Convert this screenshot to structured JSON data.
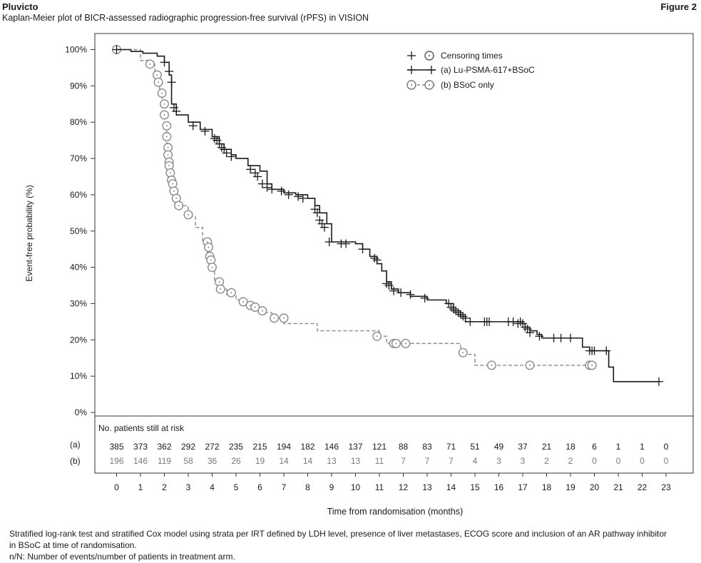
{
  "header": {
    "product": "Pluvicto",
    "figure_label": "Figure 2",
    "subtitle": "Kaplan-Meier plot of BICR-assessed radiographic progression-free survival (rPFS)  in VISION"
  },
  "footnotes": [
    "Stratified log-rank test and stratified Cox model using strata per IRT defined by LDH level, presence of liver metastases, ECOG score and inclusion of an AR pathway inhibitor",
    "in BSoC at time of randomisation.",
    "n/N: Number of events/number of patients in treatment arm."
  ],
  "chart_data": {
    "type": "line",
    "subtype": "kaplan-meier",
    "xlabel": "Time from randomisation (months)",
    "ylabel": "Event-free probability (%)",
    "xlim": [
      0,
      23
    ],
    "ylim": [
      0,
      100
    ],
    "x_ticks": [
      0,
      1,
      2,
      3,
      4,
      5,
      6,
      7,
      8,
      9,
      10,
      11,
      12,
      13,
      14,
      15,
      16,
      17,
      18,
      19,
      20,
      21,
      22,
      23
    ],
    "y_ticks": [
      0,
      10,
      20,
      30,
      40,
      50,
      60,
      70,
      80,
      90,
      100
    ],
    "y_tick_labels": [
      "0%",
      "10%",
      "20%",
      "30%",
      "40%",
      "50%",
      "60%",
      "70%",
      "80%",
      "90%",
      "100%"
    ],
    "grid": false,
    "legend_position": "top-right",
    "legend": [
      {
        "label": "Censoring times",
        "marker": "plus-and-circle"
      },
      {
        "label": "(a) Lu-PSMA-617+BSoC",
        "series": 0
      },
      {
        "label": "(b) BSoC only",
        "series": 1
      }
    ],
    "series": [
      {
        "name": "(a) Lu-PSMA-617+BSoC",
        "color": "#1a1a1a",
        "dash": "solid",
        "marker": "plus",
        "steps": [
          [
            0,
            100
          ],
          [
            0.6,
            99.5
          ],
          [
            1.1,
            99
          ],
          [
            1.7,
            98.2
          ],
          [
            2.0,
            96.5
          ],
          [
            2.2,
            93
          ],
          [
            2.3,
            85
          ],
          [
            2.5,
            82
          ],
          [
            3,
            80
          ],
          [
            3.5,
            78
          ],
          [
            4,
            76
          ],
          [
            4.3,
            74
          ],
          [
            4.5,
            72.5
          ],
          [
            4.8,
            71
          ],
          [
            5,
            70
          ],
          [
            5.5,
            68
          ],
          [
            6,
            66.5
          ],
          [
            6.3,
            63
          ],
          [
            6.5,
            61.5
          ],
          [
            7,
            60.5
          ],
          [
            7.5,
            60
          ],
          [
            8,
            59
          ],
          [
            8.3,
            57
          ],
          [
            8.5,
            55
          ],
          [
            8.8,
            52
          ],
          [
            9,
            47
          ],
          [
            10,
            46.5
          ],
          [
            10.3,
            45
          ],
          [
            10.6,
            43
          ],
          [
            10.9,
            41
          ],
          [
            11.1,
            39
          ],
          [
            11.3,
            36
          ],
          [
            11.5,
            34
          ],
          [
            11.8,
            33
          ],
          [
            12.3,
            32
          ],
          [
            13,
            31
          ],
          [
            13.8,
            30
          ],
          [
            14.1,
            28
          ],
          [
            14.4,
            26.5
          ],
          [
            14.6,
            25
          ],
          [
            16,
            25
          ],
          [
            17,
            24.5
          ],
          [
            17.1,
            23.5
          ],
          [
            17.3,
            22.5
          ],
          [
            17.6,
            21.5
          ],
          [
            17.8,
            20.5
          ],
          [
            19.2,
            20.5
          ],
          [
            19.5,
            18
          ],
          [
            19.8,
            17
          ],
          [
            20.6,
            12.5
          ],
          [
            20.8,
            8.5
          ],
          [
            22.7,
            8.5
          ]
        ],
        "censored": [
          [
            0,
            100
          ],
          [
            2.0,
            96.5
          ],
          [
            2.2,
            94
          ],
          [
            2.3,
            91
          ],
          [
            2.4,
            84
          ],
          [
            2.5,
            83
          ],
          [
            3.2,
            79
          ],
          [
            3.7,
            77.5
          ],
          [
            4.1,
            75.5
          ],
          [
            4.2,
            75
          ],
          [
            4.3,
            74
          ],
          [
            4.4,
            73
          ],
          [
            4.5,
            72.5
          ],
          [
            4.6,
            71.5
          ],
          [
            4.8,
            70.5
          ],
          [
            5.6,
            67
          ],
          [
            5.8,
            66
          ],
          [
            5.9,
            65
          ],
          [
            6.1,
            63
          ],
          [
            6.3,
            62
          ],
          [
            6.5,
            61.5
          ],
          [
            6.9,
            61
          ],
          [
            7.2,
            60
          ],
          [
            7.6,
            59.5
          ],
          [
            7.8,
            59
          ],
          [
            8.3,
            56
          ],
          [
            8.4,
            55
          ],
          [
            8.5,
            53
          ],
          [
            8.6,
            52
          ],
          [
            8.7,
            51
          ],
          [
            8.9,
            47
          ],
          [
            9.4,
            46.5
          ],
          [
            9.6,
            46.5
          ],
          [
            10.3,
            45
          ],
          [
            10.8,
            42.5
          ],
          [
            10.9,
            42
          ],
          [
            11.3,
            35.5
          ],
          [
            11.4,
            35
          ],
          [
            11.6,
            33.5
          ],
          [
            11.9,
            33
          ],
          [
            12.3,
            32.5
          ],
          [
            12.9,
            31.5
          ],
          [
            13.9,
            30
          ],
          [
            14.0,
            29
          ],
          [
            14.1,
            28.5
          ],
          [
            14.2,
            28
          ],
          [
            14.3,
            27.5
          ],
          [
            14.4,
            27
          ],
          [
            14.5,
            26.5
          ],
          [
            14.6,
            26
          ],
          [
            14.8,
            25
          ],
          [
            15.4,
            25
          ],
          [
            15.5,
            25
          ],
          [
            15.6,
            25
          ],
          [
            16.4,
            25
          ],
          [
            16.6,
            25
          ],
          [
            16.8,
            24.5
          ],
          [
            16.9,
            25
          ],
          [
            17.0,
            24.5
          ],
          [
            17.1,
            23.5
          ],
          [
            17.2,
            23
          ],
          [
            17.3,
            22
          ],
          [
            17.7,
            21
          ],
          [
            18.3,
            20.5
          ],
          [
            18.6,
            20.5
          ],
          [
            19.0,
            20.5
          ],
          [
            19.8,
            17
          ],
          [
            19.9,
            17
          ],
          [
            20.0,
            17
          ],
          [
            20.5,
            17
          ],
          [
            22.7,
            8.5
          ]
        ]
      },
      {
        "name": "(b) BSoC only",
        "color": "#8a8a8a",
        "dash": "dashed",
        "marker": "circle",
        "steps": [
          [
            0,
            100
          ],
          [
            1.0,
            97
          ],
          [
            1.3,
            96
          ],
          [
            1.6,
            93
          ],
          [
            1.7,
            91
          ],
          [
            1.8,
            88
          ],
          [
            1.9,
            85
          ],
          [
            2.0,
            79
          ],
          [
            2.1,
            73
          ],
          [
            2.15,
            69
          ],
          [
            2.2,
            66
          ],
          [
            2.3,
            61
          ],
          [
            2.5,
            57
          ],
          [
            3,
            54
          ],
          [
            3.3,
            51
          ],
          [
            3.6,
            47
          ],
          [
            3.8,
            42
          ],
          [
            3.9,
            40
          ],
          [
            4.1,
            36
          ],
          [
            4.3,
            34
          ],
          [
            4.6,
            32.5
          ],
          [
            5,
            31
          ],
          [
            5.3,
            30
          ],
          [
            5.5,
            29
          ],
          [
            6,
            27.5
          ],
          [
            6.5,
            26
          ],
          [
            7,
            24.5
          ],
          [
            8,
            24.5
          ],
          [
            8.4,
            22.5
          ],
          [
            10,
            22.5
          ],
          [
            11.0,
            21
          ],
          [
            11.3,
            19
          ],
          [
            11.6,
            19
          ],
          [
            13.3,
            19
          ],
          [
            14.4,
            16
          ],
          [
            15.0,
            13
          ],
          [
            19.8,
            13
          ]
        ],
        "censored": [
          [
            0,
            100
          ],
          [
            1.4,
            96
          ],
          [
            1.7,
            93
          ],
          [
            1.75,
            91
          ],
          [
            1.9,
            88
          ],
          [
            2.0,
            85
          ],
          [
            2.0,
            82
          ],
          [
            2.1,
            79
          ],
          [
            2.1,
            76
          ],
          [
            2.15,
            73
          ],
          [
            2.15,
            71
          ],
          [
            2.2,
            69
          ],
          [
            2.2,
            68
          ],
          [
            2.25,
            66
          ],
          [
            2.3,
            64
          ],
          [
            2.35,
            63
          ],
          [
            2.4,
            61
          ],
          [
            2.5,
            59
          ],
          [
            2.6,
            57
          ],
          [
            3.0,
            54.5
          ],
          [
            3.8,
            47
          ],
          [
            3.85,
            45.5
          ],
          [
            3.9,
            43
          ],
          [
            3.95,
            42
          ],
          [
            4.0,
            40
          ],
          [
            4.3,
            36
          ],
          [
            4.35,
            34
          ],
          [
            4.8,
            33
          ],
          [
            5.3,
            30.5
          ],
          [
            5.6,
            29.5
          ],
          [
            5.8,
            29
          ],
          [
            6.1,
            28
          ],
          [
            6.6,
            26
          ],
          [
            7.0,
            26
          ],
          [
            10.9,
            21
          ],
          [
            11.6,
            19
          ],
          [
            11.7,
            19
          ],
          [
            12.1,
            19
          ],
          [
            14.5,
            16.5
          ],
          [
            15.7,
            13
          ],
          [
            17.3,
            13
          ],
          [
            19.8,
            13
          ],
          [
            19.9,
            13
          ]
        ]
      }
    ],
    "at_risk": {
      "title": "No. patients still at risk",
      "rows": [
        {
          "label": "(a)",
          "color": "#1a1a1a",
          "values": [
            "385",
            "373",
            "362",
            "292",
            "272",
            "235",
            "215",
            "194",
            "182",
            "146",
            "137",
            "121",
            "88",
            "83",
            "71",
            "51",
            "49",
            "37",
            "21",
            "18",
            "6",
            "1",
            "1",
            "0"
          ]
        },
        {
          "label": "(b)",
          "color": "#7a7a7a",
          "values": [
            "196",
            "146",
            "119",
            "58",
            "36",
            "26",
            "19",
            "14",
            "14",
            "13",
            "13",
            "11",
            "7",
            "7",
            "7",
            "4",
            "3",
            "3",
            "2",
            "2",
            "0",
            "0",
            "0",
            "0"
          ]
        }
      ]
    }
  }
}
